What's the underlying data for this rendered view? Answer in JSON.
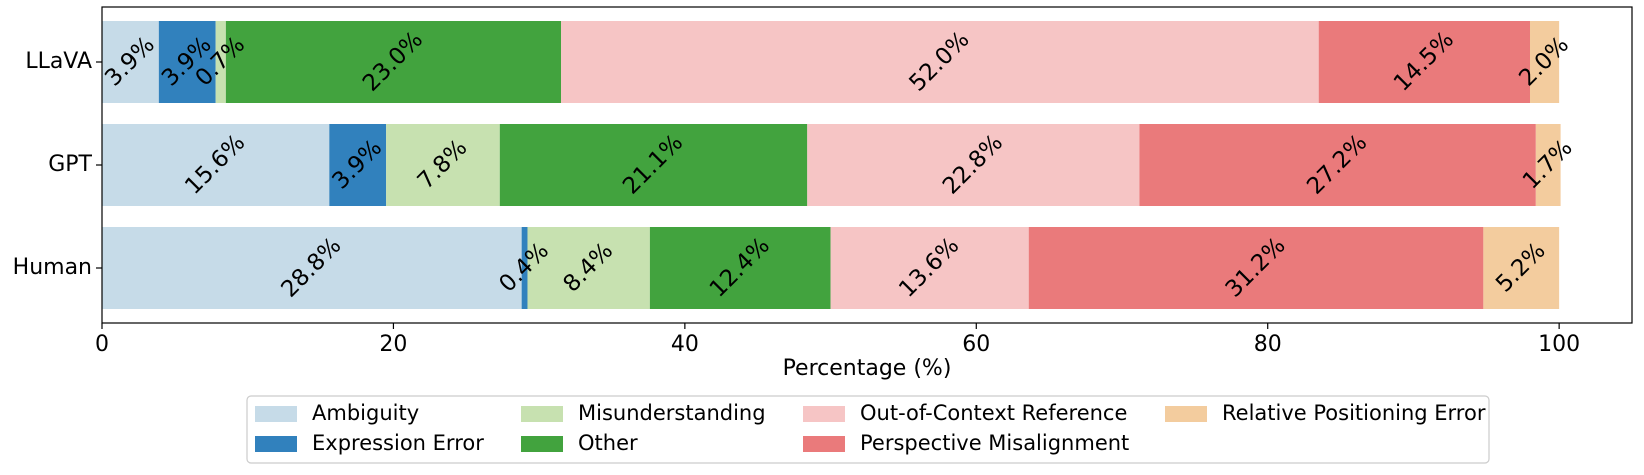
{
  "chart_data": {
    "type": "bar",
    "orientation": "horizontal",
    "stacked": true,
    "title": "",
    "xlabel": "Percentage (%)",
    "ylabel": "",
    "xlim": [
      0,
      105
    ],
    "xticks": [
      0,
      20,
      40,
      60,
      80,
      100
    ],
    "categories": [
      "LLaVA",
      "GPT",
      "Human"
    ],
    "series": [
      {
        "name": "Ambiguity",
        "color": "#c6dbe8",
        "values": [
          3.9,
          15.6,
          28.8
        ],
        "labels": [
          "3.9%",
          "15.6%",
          "28.8%"
        ]
      },
      {
        "name": "Expression Error",
        "color": "#3181bd",
        "values": [
          3.9,
          3.9,
          0.4
        ],
        "labels": [
          "3.9%",
          "3.9%",
          "0.4%"
        ]
      },
      {
        "name": "Misunderstanding",
        "color": "#c7e1b0",
        "values": [
          0.7,
          7.8,
          8.4
        ],
        "labels": [
          "0.7%",
          "7.8%",
          "8.4%"
        ]
      },
      {
        "name": "Other",
        "color": "#42a33e",
        "values": [
          23.0,
          21.1,
          12.4
        ],
        "labels": [
          "23.0%",
          "21.1%",
          "12.4%"
        ]
      },
      {
        "name": "Out-of-Context Reference",
        "color": "#f6c5c5",
        "values": [
          52.0,
          22.8,
          13.6
        ],
        "labels": [
          "52.0%",
          "22.8%",
          "13.6%"
        ]
      },
      {
        "name": "Perspective Misalignment",
        "color": "#ea7a7b",
        "values": [
          14.5,
          27.2,
          31.2
        ],
        "labels": [
          "14.5%",
          "27.2%",
          "31.2%"
        ]
      },
      {
        "name": "Relative Positioning Error",
        "color": "#f3cc9e",
        "values": [
          2.0,
          1.7,
          5.2
        ],
        "labels": [
          "2.0%",
          "1.7%",
          "5.2%"
        ]
      }
    ],
    "legend_position": "bottom-center",
    "legend_columns": 4,
    "grid": false
  }
}
